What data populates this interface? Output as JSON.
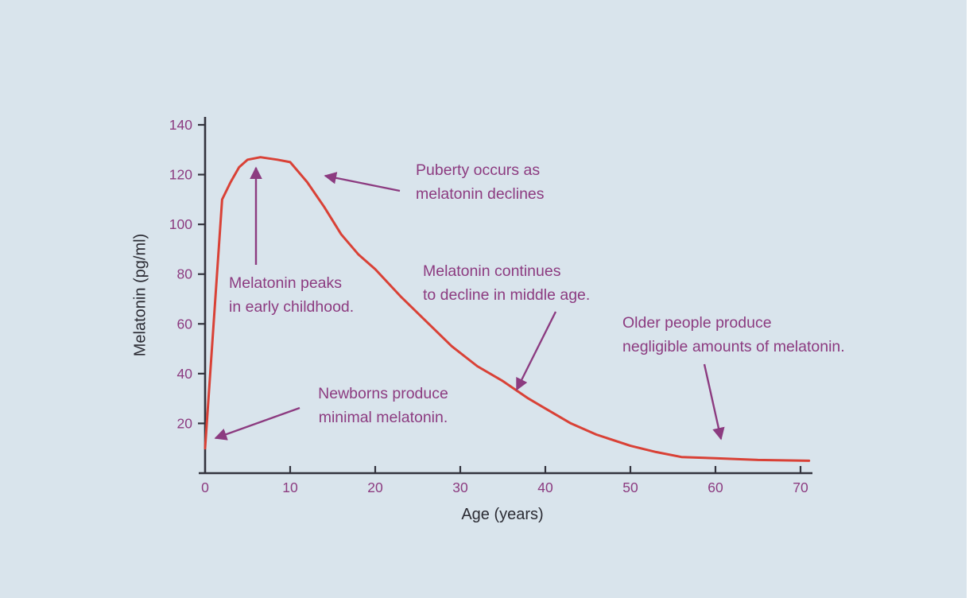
{
  "page": {
    "background_color": "#d9e4ec"
  },
  "chart_data": {
    "type": "line",
    "title": "",
    "xlabel": "Age (years)",
    "ylabel": "Melatonin (pg/ml)",
    "xlim": [
      0,
      72
    ],
    "ylim": [
      0,
      145
    ],
    "x_ticks": [
      0,
      10,
      20,
      30,
      40,
      50,
      60,
      70
    ],
    "y_ticks": [
      20,
      40,
      60,
      80,
      100,
      120,
      140
    ],
    "grid": false,
    "legend": "none",
    "line_color": "#d94136",
    "axis_color": "#33333d",
    "tick_label_color": "#8c3b80",
    "annotation_color": "#8c3b80",
    "series": [
      {
        "name": "Melatonin (pg/ml)",
        "points": [
          [
            0,
            10
          ],
          [
            1,
            60
          ],
          [
            2,
            110
          ],
          [
            3,
            117
          ],
          [
            4,
            123
          ],
          [
            5,
            126
          ],
          [
            6.5,
            127
          ],
          [
            8.5,
            126
          ],
          [
            10,
            125
          ],
          [
            12,
            117
          ],
          [
            14,
            107
          ],
          [
            16,
            96
          ],
          [
            18,
            88
          ],
          [
            20,
            82
          ],
          [
            23,
            71
          ],
          [
            26,
            61
          ],
          [
            29,
            51
          ],
          [
            32,
            43
          ],
          [
            35,
            37
          ],
          [
            38,
            30
          ],
          [
            40,
            26
          ],
          [
            43,
            20
          ],
          [
            46,
            15.5
          ],
          [
            50,
            11
          ],
          [
            53,
            8.5
          ],
          [
            56,
            6.5
          ],
          [
            60,
            6
          ],
          [
            65,
            5.3
          ],
          [
            71,
            5
          ]
        ]
      }
    ],
    "annotations": [
      {
        "id": "newborns",
        "lines": [
          "Newborns produce",
          "minimal melatonin."
        ],
        "target_age": 0
      },
      {
        "id": "peak",
        "lines": [
          "Melatonin peaks",
          "in early childhood."
        ],
        "target_age": 6
      },
      {
        "id": "puberty",
        "lines": [
          "Puberty occurs as",
          "melatonin declines"
        ],
        "target_age": 13
      },
      {
        "id": "middleage",
        "lines": [
          "Melatonin continues",
          "to decline in middle age."
        ],
        "target_age": 36
      },
      {
        "id": "older",
        "lines": [
          "Older people produce",
          "negligible amounts of melatonin."
        ],
        "target_age": 60
      }
    ]
  }
}
